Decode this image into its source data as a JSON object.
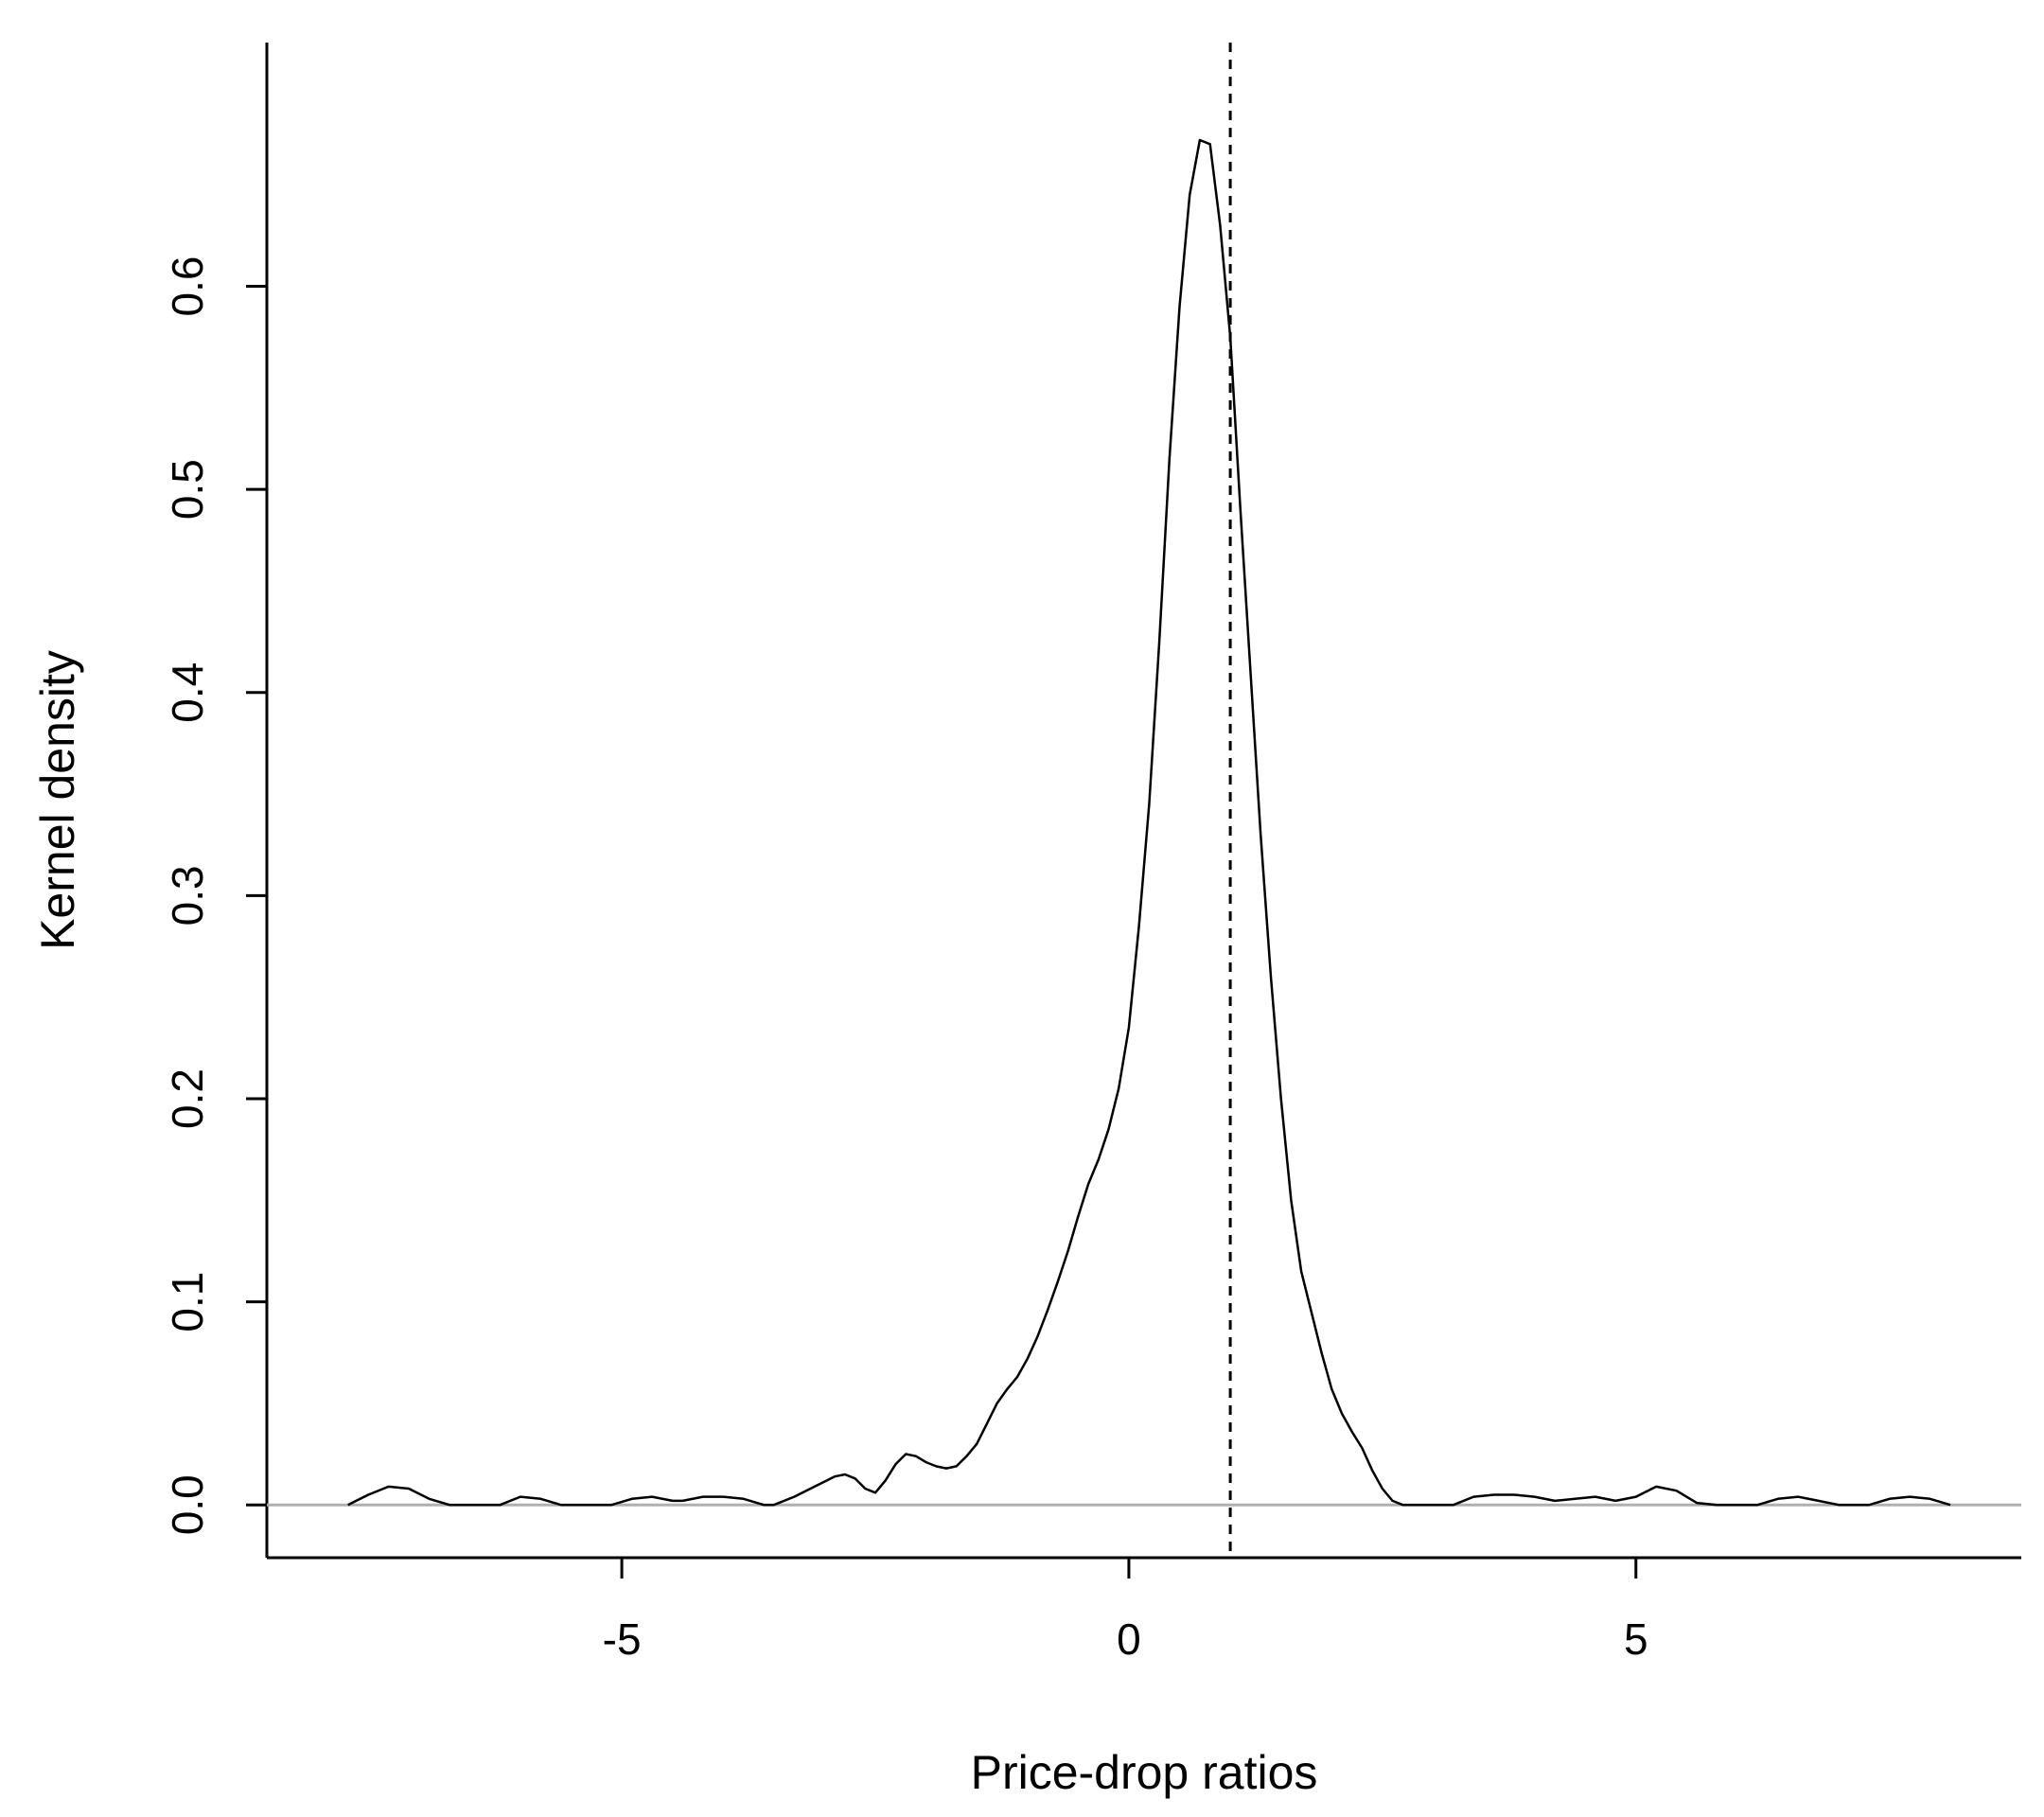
{
  "chart_data": {
    "type": "line",
    "title": "",
    "xlabel": "Price-drop ratios",
    "ylabel": "Kernel density",
    "xlim": [
      -8.5,
      8.8
    ],
    "ylim": [
      -0.026,
      0.72
    ],
    "xticks": [
      -5,
      0,
      5
    ],
    "xtick_labels": [
      "-5",
      "0",
      "5"
    ],
    "yticks": [
      0.0,
      0.1,
      0.2,
      0.3,
      0.4,
      0.5,
      0.6
    ],
    "ytick_labels": [
      "0.0",
      "0.1",
      "0.2",
      "0.3",
      "0.4",
      "0.5",
      "0.6"
    ],
    "grid": false,
    "series": [
      {
        "color": "#000000",
        "style": "solid",
        "x": [
          -7.7,
          -7.5,
          -7.3,
          -7.1,
          -6.9,
          -6.7,
          -6.55,
          -6.2,
          -6.0,
          -5.8,
          -5.6,
          -5.1,
          -4.9,
          -4.7,
          -4.5,
          -4.4,
          -4.2,
          -4.0,
          -3.8,
          -3.6,
          -3.5,
          -3.3,
          -3.1,
          -2.9,
          -2.8,
          -2.7,
          -2.6,
          -2.5,
          -2.4,
          -2.3,
          -2.2,
          -2.1,
          -2.0,
          -1.9,
          -1.8,
          -1.7,
          -1.6,
          -1.5,
          -1.4,
          -1.3,
          -1.2,
          -1.1,
          -1.0,
          -0.9,
          -0.8,
          -0.7,
          -0.6,
          -0.5,
          -0.4,
          -0.3,
          -0.2,
          -0.1,
          0.0,
          0.1,
          0.2,
          0.3,
          0.4,
          0.5,
          0.6,
          0.7,
          0.8,
          0.9,
          1.0,
          1.1,
          1.2,
          1.3,
          1.4,
          1.5,
          1.6,
          1.7,
          1.8,
          1.9,
          2.0,
          2.1,
          2.2,
          2.3,
          2.4,
          2.5,
          2.6,
          2.7,
          2.8,
          2.9,
          3.0,
          3.1,
          3.2,
          3.4,
          3.6,
          3.8,
          4.0,
          4.2,
          4.4,
          4.6,
          4.8,
          5.0,
          5.2,
          5.4,
          5.6,
          5.8,
          6.2,
          6.4,
          6.6,
          6.8,
          7.0,
          7.3,
          7.5,
          7.7,
          7.9,
          8.1
        ],
        "y": [
          0.0,
          0.005,
          0.009,
          0.008,
          0.003,
          0.0,
          0.0,
          0.0,
          0.004,
          0.003,
          0.0,
          0.0,
          0.003,
          0.004,
          0.002,
          0.002,
          0.004,
          0.004,
          0.003,
          0.0,
          0.0,
          0.004,
          0.009,
          0.014,
          0.015,
          0.013,
          0.008,
          0.006,
          0.012,
          0.02,
          0.025,
          0.024,
          0.021,
          0.019,
          0.018,
          0.019,
          0.024,
          0.03,
          0.04,
          0.05,
          0.057,
          0.063,
          0.072,
          0.083,
          0.096,
          0.11,
          0.125,
          0.142,
          0.158,
          0.17,
          0.185,
          0.205,
          0.235,
          0.285,
          0.345,
          0.425,
          0.515,
          0.59,
          0.645,
          0.672,
          0.67,
          0.63,
          0.575,
          0.49,
          0.41,
          0.33,
          0.26,
          0.2,
          0.15,
          0.115,
          0.095,
          0.075,
          0.057,
          0.045,
          0.036,
          0.028,
          0.017,
          0.008,
          0.002,
          0.0,
          0.0,
          0.0,
          0.0,
          0.0,
          0.0,
          0.004,
          0.005,
          0.005,
          0.004,
          0.002,
          0.003,
          0.004,
          0.002,
          0.004,
          0.009,
          0.007,
          0.001,
          0.0,
          0.0,
          0.003,
          0.004,
          0.002,
          0.0,
          0.0,
          0.003,
          0.004,
          0.003,
          0.0
        ]
      }
    ],
    "reference_lines": [
      {
        "orientation": "horizontal",
        "value": 0.0,
        "color": "#b0b0b0",
        "style": "solid"
      },
      {
        "orientation": "vertical",
        "value": 1.0,
        "color": "#000000",
        "style": "dashed"
      }
    ]
  }
}
